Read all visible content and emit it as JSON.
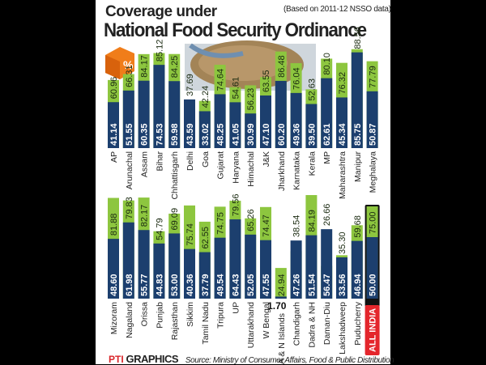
{
  "header": {
    "title_line1": "Coverage under",
    "title_line2": "National Food Security Ordinance",
    "note": "(Based on 2011-12 NSSO data)"
  },
  "footer": {
    "logo": "PTI",
    "graphics": "GRAPHICS",
    "source": "Source: Ministry of Consumer Affairs, Food & Public Distribution"
  },
  "colors": {
    "blue": "#1c3f6e",
    "green": "#8dc63f",
    "highlight": "#e4262c"
  },
  "icons": {
    "cube": "percent-cube-icon",
    "photo": "grain-bowl-photo"
  },
  "chart_data": [
    {
      "type": "bar",
      "layout": "overlapping",
      "grid": false,
      "categories": [
        "AP",
        "Arunachal",
        "Assam",
        "Bihar",
        "Chhattisgarh",
        "Delhi",
        "Goa",
        "Gujarat",
        "Haryana",
        "Himachal",
        "J&K",
        "Jharkhand",
        "Karnataka",
        "Kerala",
        "MP",
        "Maharashtra",
        "Manipur",
        "Meghalaya"
      ],
      "series": [
        {
          "color": "#1c3f6e",
          "values": [
            41.14,
            51.55,
            60.35,
            74.53,
            59.98,
            43.59,
            33.02,
            48.25,
            41.05,
            30.99,
            47.1,
            60.2,
            49.36,
            39.5,
            62.61,
            45.34,
            85.75,
            50.87
          ],
          "labels": [
            "41.14",
            "51.55",
            "60.35",
            "74.53",
            "59.98",
            "43.59",
            "33.02",
            "48.25",
            "41.05",
            "30.99",
            "47.10",
            "60.20",
            "49.36",
            "39.50",
            "62.61",
            "45.34",
            "85.75",
            "50.87"
          ]
        },
        {
          "color": "#8dc63f",
          "values": [
            60.96,
            66.31,
            84.17,
            85.12,
            84.25,
            37.69,
            42.24,
            74.64,
            54.61,
            56.23,
            63.55,
            86.48,
            76.04,
            52.63,
            80.1,
            76.32,
            88.56,
            77.79
          ],
          "labels": [
            "60.96",
            "66.31",
            "84.17",
            "85.12",
            "84.25",
            "37.69",
            "42.24",
            "74.64",
            "54.61",
            "56.23",
            "63.55",
            "86.48",
            "76.04",
            "52.63",
            "80.10",
            "76.32",
            "88.56",
            "77.79"
          ]
        }
      ]
    },
    {
      "type": "bar",
      "layout": "overlapping",
      "grid": false,
      "categories": [
        "Mizoram",
        "Nagaland",
        "Orissa",
        "Punjab",
        "Rajasthan",
        "Sikkim",
        "Tamil Nadu",
        "Tripura",
        "UP",
        "Uttarakhand",
        "W Bengal",
        "A & N Islands",
        "Chandigarh",
        "Dadra & NH",
        "Daman-Diu",
        "Lakshadweep",
        "Puducherry",
        "ALL INDIA"
      ],
      "series": [
        {
          "color": "#1c3f6e",
          "values": [
            48.6,
            61.98,
            55.77,
            44.83,
            53.0,
            40.36,
            37.79,
            49.54,
            64.43,
            52.05,
            47.55,
            1.7,
            47.26,
            51.54,
            56.47,
            33.56,
            46.94,
            50.0
          ],
          "labels": [
            "48.60",
            "61.98",
            "55.77",
            "44.83",
            "53.00",
            "40.36",
            "37.79",
            "49.54",
            "64.43",
            "52.05",
            "47.55",
            "1.70",
            "47.26",
            "51.54",
            "56.47",
            "33.56",
            "46.94",
            "50.00"
          ]
        },
        {
          "color": "#8dc63f",
          "values": [
            81.88,
            79.83,
            82.17,
            54.79,
            69.09,
            75.74,
            62.55,
            74.75,
            79.56,
            65.26,
            74.47,
            24.94,
            38.54,
            84.19,
            26.66,
            35.3,
            59.68,
            75.0
          ],
          "labels": [
            "81.88",
            "79.83",
            "82.17",
            "54.79",
            "69.09",
            "75.74",
            "62.55",
            "74.75",
            "79.56",
            "65.26",
            "74.47",
            "24.94",
            "38.54",
            "84.19",
            "26.66",
            "35.30",
            "59.68",
            "75.00"
          ]
        }
      ]
    }
  ]
}
